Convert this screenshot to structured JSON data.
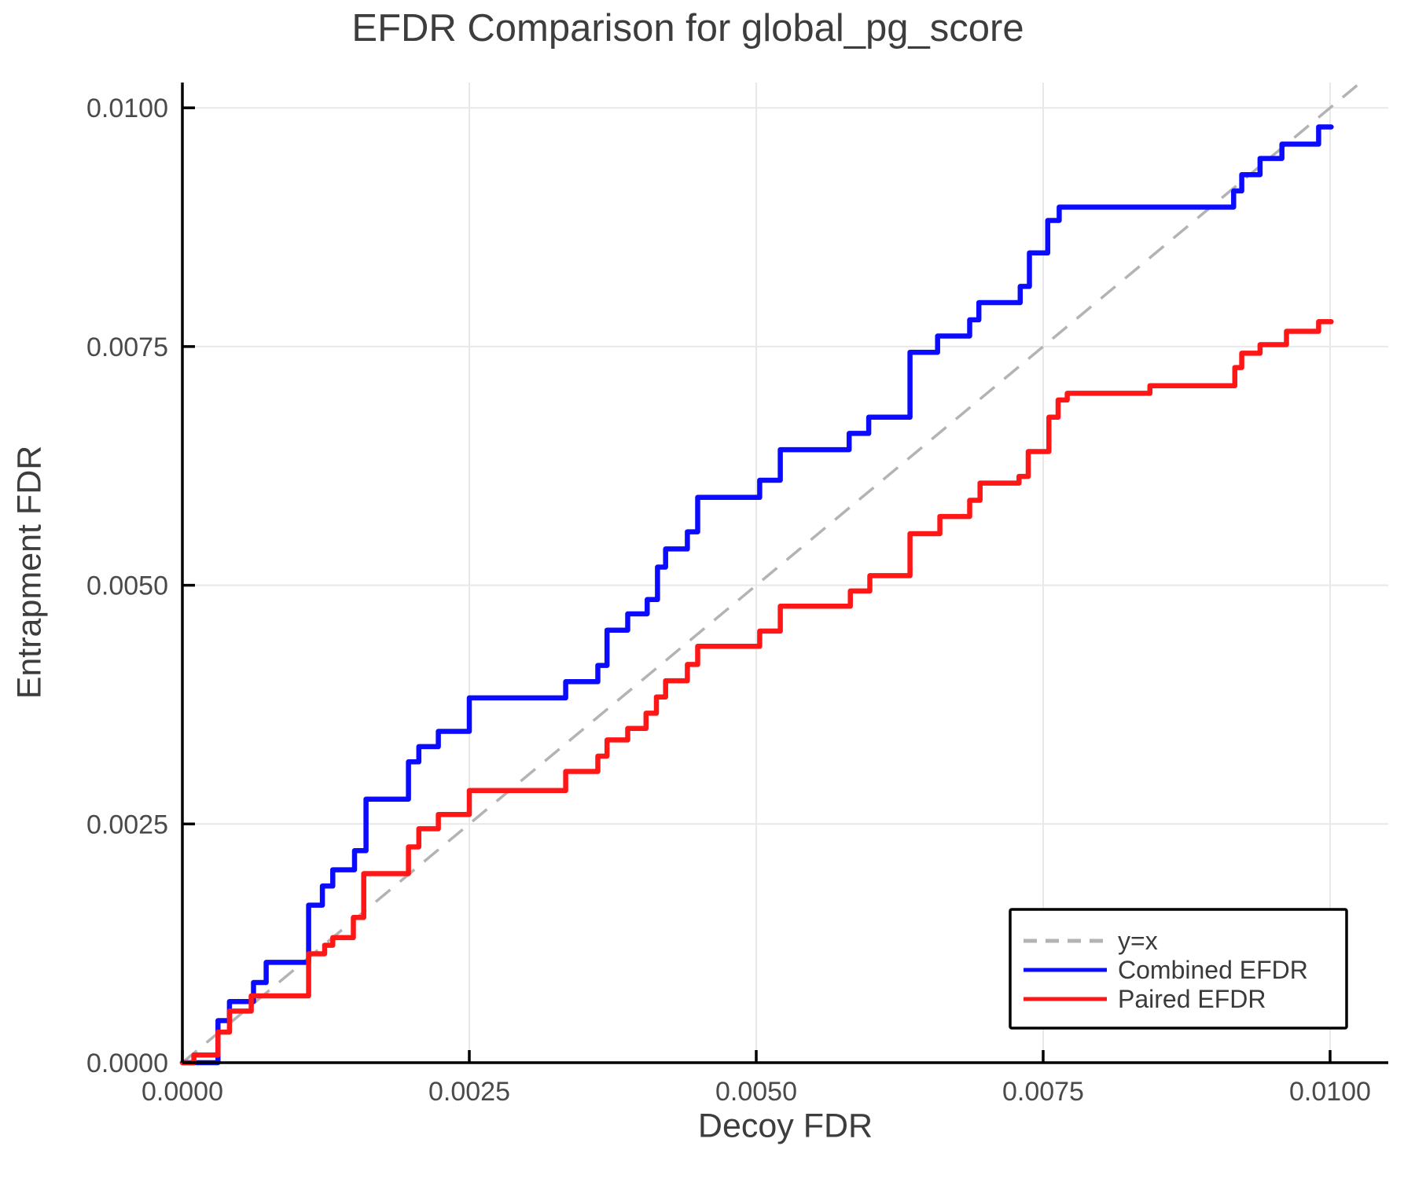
{
  "chart_data": {
    "type": "line",
    "title": "EFDR Comparison for global_pg_score",
    "xlabel": "Decoy FDR",
    "ylabel": "Entrapment FDR",
    "xlim": [
      0,
      0.010507
    ],
    "ylim": [
      0,
      0.010265
    ],
    "grid": true,
    "x_tick_values": [
      0,
      0.0025,
      0.005,
      0.0075,
      0.01
    ],
    "x_tick_labels": [
      "0.0000",
      "0.0025",
      "0.0050",
      "0.0075",
      "0.0100"
    ],
    "y_tick_values": [
      0,
      0.0025,
      0.005,
      0.0075,
      0.01
    ],
    "y_tick_labels": [
      "0.0000",
      "0.0025",
      "0.0050",
      "0.0075",
      "0.0100"
    ],
    "colors": {
      "combined": "#0b0bff",
      "paired": "#ff1616",
      "identity": "#b3b3b3",
      "grid": "#e8e8e8",
      "spine": "#000000",
      "tick_text": "#4a4a4a",
      "legend_text": "#3a3a3a",
      "legend_border": "#000000"
    },
    "legend": {
      "position": "lower right",
      "items": [
        {
          "label": "y=x",
          "color": "#b3b3b3",
          "dashed": true
        },
        {
          "label": "Combined EFDR",
          "color": "#0b0bff",
          "dashed": false
        },
        {
          "label": "Paired EFDR",
          "color": "#ff1616",
          "dashed": false
        }
      ]
    },
    "series": [
      {
        "name": "y=x",
        "style": "dashed",
        "color": "#b3b3b3",
        "from": [
          0,
          0
        ],
        "to": [
          0.010265,
          0.010265
        ]
      },
      {
        "name": "Combined EFDR",
        "color": "#0b0bff",
        "step": "hv",
        "x_start": 0,
        "y_start": 0,
        "x_end": 0.01001,
        "x": [
          0.00031,
          0.00041,
          0.00062,
          0.00073,
          0.0011,
          0.00122,
          0.00131,
          0.0015,
          0.0016,
          0.00197,
          0.00206,
          0.00223,
          0.0025,
          0.00334,
          0.00362,
          0.0037,
          0.00388,
          0.00405,
          0.00414,
          0.00421,
          0.0044,
          0.00449,
          0.00503,
          0.00521,
          0.00581,
          0.00598,
          0.00634,
          0.00658,
          0.00686,
          0.00694,
          0.0073,
          0.00738,
          0.00754,
          0.00764,
          0.00916,
          0.00923,
          0.00939,
          0.00958,
          0.0099
        ],
        "y": [
          0.00044,
          0.00064,
          0.00084,
          0.00105,
          0.00165,
          0.00185,
          0.00202,
          0.00222,
          0.00276,
          0.00315,
          0.00331,
          0.00347,
          0.00382,
          0.00399,
          0.00416,
          0.00453,
          0.0047,
          0.00485,
          0.00519,
          0.00538,
          0.00556,
          0.00592,
          0.0061,
          0.00642,
          0.00659,
          0.00676,
          0.00744,
          0.00761,
          0.00778,
          0.00796,
          0.00813,
          0.00848,
          0.00882,
          0.00896,
          0.00913,
          0.0093,
          0.00947,
          0.00962,
          0.0098
        ]
      },
      {
        "name": "Paired EFDR",
        "color": "#ff1616",
        "step": "hv",
        "x_start": 0,
        "y_start": 0,
        "x_end": 0.01001,
        "x": [
          0.0001,
          0.00031,
          0.00041,
          0.0006,
          0.0011,
          0.00124,
          0.00131,
          0.00149,
          0.00158,
          0.00197,
          0.00206,
          0.00223,
          0.0025,
          0.00334,
          0.00362,
          0.0037,
          0.00388,
          0.00404,
          0.00413,
          0.00421,
          0.0044,
          0.00449,
          0.00503,
          0.00521,
          0.00582,
          0.00599,
          0.00634,
          0.0066,
          0.00686,
          0.00695,
          0.00729,
          0.00737,
          0.00755,
          0.00763,
          0.00771,
          0.00843,
          0.00917,
          0.00923,
          0.00939,
          0.00962,
          0.0099
        ],
        "y": [
          8e-05,
          0.00032,
          0.00054,
          0.0007,
          0.00114,
          0.00123,
          0.00131,
          0.00152,
          0.00198,
          0.00226,
          0.00245,
          0.0026,
          0.00285,
          0.00305,
          0.00321,
          0.00338,
          0.0035,
          0.00366,
          0.00383,
          0.004,
          0.00417,
          0.00436,
          0.00452,
          0.00478,
          0.00494,
          0.0051,
          0.00554,
          0.00572,
          0.00589,
          0.00607,
          0.00614,
          0.0064,
          0.00676,
          0.00694,
          0.00701,
          0.00709,
          0.00728,
          0.00743,
          0.00752,
          0.00766,
          0.00776
        ]
      }
    ]
  }
}
